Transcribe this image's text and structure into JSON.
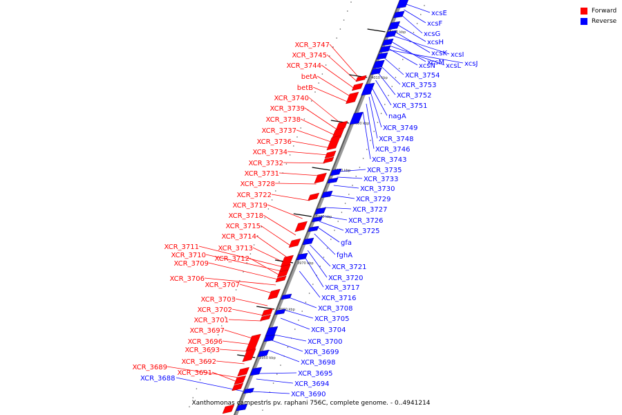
{
  "legend": {
    "forward_label": "Forward",
    "reverse_label": "Reverse",
    "forward_color": "#ff0000",
    "reverse_color": "#0000ff"
  },
  "caption": "Xanthomonas campestris pv. raphani 756C, complete genome. - 0..4941214",
  "kbp_ticks": [
    "4020 kbp",
    "4010 kbp",
    "4000 kbp",
    "3990 kbp",
    "3980 kbp",
    "3970 kbp",
    "3960 kbp",
    "3950 kbp"
  ],
  "forward_genes": [
    "XCR_3747",
    "XCR_3745",
    "XCR_3744",
    "betA",
    "betB",
    "XCR_3740",
    "XCR_3739",
    "XCR_3738",
    "XCR_3737",
    "XCR_3736",
    "XCR_3734",
    "XCR_3732",
    "XCR_3731",
    "XCR_3728",
    "XCR_3722",
    "XCR_3719",
    "XCR_3718",
    "XCR_3715",
    "XCR_3714",
    "XCR_3713",
    "XCR_3711",
    "XCR_3710",
    "XCR_3712",
    "XCR_3709",
    "XCR_3706",
    "XCR_3707",
    "XCR_3703",
    "XCR_3702",
    "XCR_3701",
    "XCR_3697",
    "XCR_3696",
    "XCR_3693",
    "XCR_3692",
    "XCR_3689",
    "XCR_3691"
  ],
  "reverse_genes": [
    "xcsE",
    "xcsF",
    "xcsG",
    "xcsH",
    "xcsK",
    "xcsI",
    "xcsM",
    "xcsN",
    "xcsL",
    "xcsJ",
    "XCR_3754",
    "XCR_3753",
    "XCR_3752",
    "XCR_3751",
    "nagA",
    "XCR_3749",
    "XCR_3748",
    "XCR_3746",
    "XCR_3743",
    "XCR_3735",
    "XCR_3733",
    "XCR_3730",
    "XCR_3729",
    "XCR_3727",
    "XCR_3726",
    "XCR_3725",
    "gfa",
    "fghA",
    "XCR_3721",
    "XCR_3720",
    "XCR_3717",
    "XCR_3716",
    "XCR_3708",
    "XCR_3705",
    "XCR_3704",
    "XCR_3700",
    "XCR_3699",
    "XCR_3698",
    "XCR_3695",
    "XCR_3694",
    "XCR_3690",
    "XCR_3688"
  ]
}
